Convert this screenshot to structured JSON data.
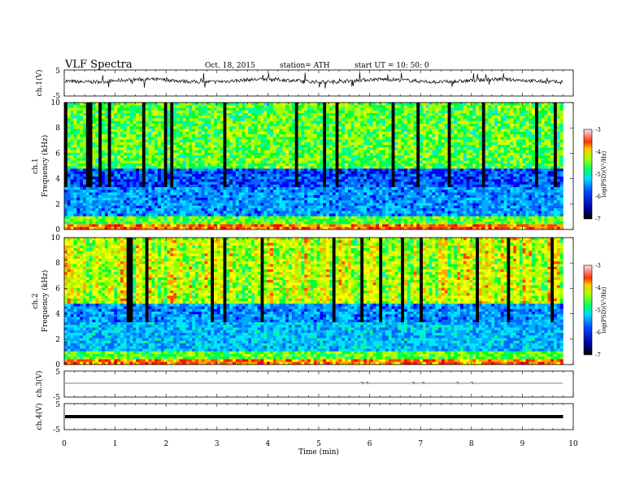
{
  "header": {
    "title": "VLF  Spectra",
    "date": "Oct. 18, 2015",
    "station": "station= ATH",
    "start": "start  UT =   10: 50: 0"
  },
  "chart_data": [
    {
      "type": "line",
      "id": "ch1",
      "ylabel": "ch.1(V)",
      "ylim": [
        -5,
        5
      ],
      "yticks": [
        "5",
        "-5"
      ],
      "description_level": 0.9
    },
    {
      "type": "heatmap",
      "id": "spec1",
      "ylabel_top": "ch.1",
      "ylabel": "Frequency  (kHz)",
      "ylim": [
        0,
        10
      ],
      "yticks": [
        "0",
        "2",
        "4",
        "6",
        "8",
        "10"
      ],
      "colorbar": {
        "label": "log(PSD)(V²/Hz)",
        "range": [
          -7,
          -3
        ],
        "ticks": [
          "-3",
          "-4",
          "-5",
          "-6",
          "-7"
        ]
      }
    },
    {
      "type": "heatmap",
      "id": "spec2",
      "ylabel_top": "ch.2",
      "ylabel": "Frequency  (kHz)",
      "ylim": [
        0,
        10
      ],
      "yticks": [
        "0",
        "2",
        "4",
        "6",
        "8",
        "10"
      ],
      "colorbar": {
        "label": "log(PSD)(V²/Hz)",
        "range": [
          -7,
          -3
        ],
        "ticks": [
          "-3",
          "-4",
          "-5",
          "-6",
          "-7"
        ]
      }
    },
    {
      "type": "line",
      "id": "ch3",
      "ylabel": "ch.3(V)",
      "ylim": [
        -5,
        5
      ],
      "yticks": [
        "5",
        "-5"
      ]
    },
    {
      "type": "line",
      "id": "ch4",
      "ylabel": "ch.4(V)",
      "ylim": [
        -5,
        5
      ],
      "yticks": [
        "5",
        "-5"
      ]
    }
  ],
  "xaxis": {
    "label": "Time  (min)",
    "range": [
      0,
      10
    ],
    "ticks": [
      "0",
      "1",
      "2",
      "3",
      "4",
      "5",
      "6",
      "7",
      "8",
      "9",
      "10"
    ],
    "data_end": 9.8
  }
}
